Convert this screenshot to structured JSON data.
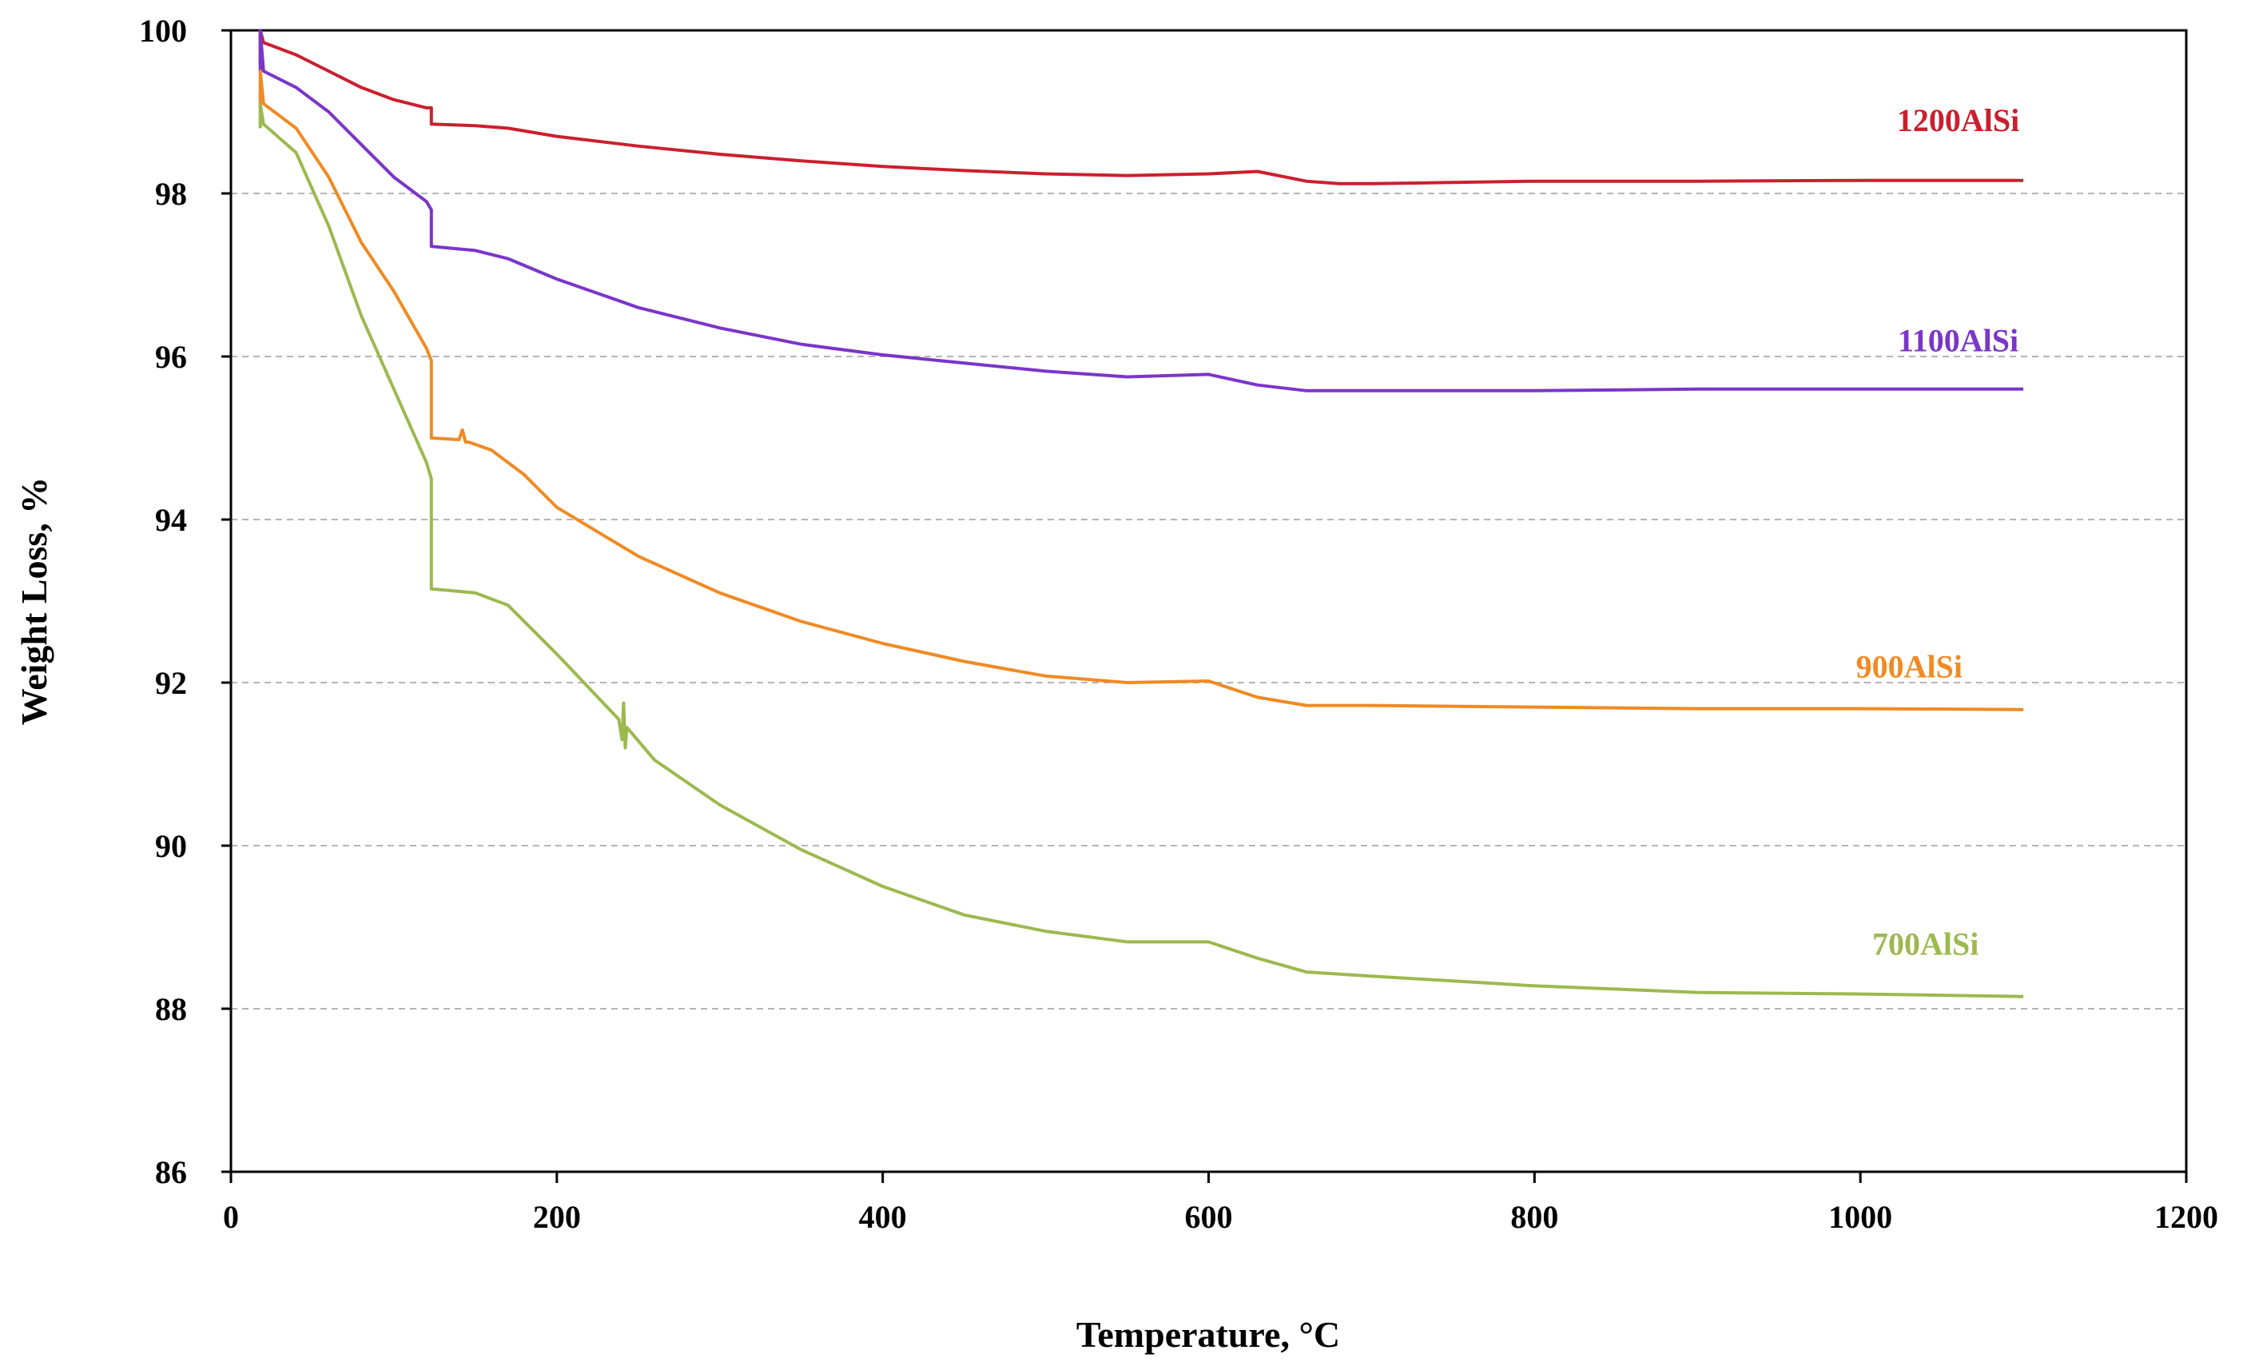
{
  "chart_data": {
    "type": "line",
    "title": "",
    "xlabel": "Temperature, °C",
    "ylabel": "Weight Loss, %",
    "xlim": [
      0,
      1200
    ],
    "ylim": [
      86,
      100
    ],
    "xticks": [
      0,
      200,
      400,
      600,
      800,
      1000,
      1200
    ],
    "yticks": [
      86,
      88,
      90,
      92,
      94,
      96,
      98,
      100
    ],
    "grid": "horizontal dashed",
    "series": [
      {
        "name": "1200AlSi",
        "color": "#cc1f2e",
        "label_at": [
          1060,
          98.9
        ],
        "x": [
          18,
          18,
          20,
          40,
          60,
          80,
          100,
          120,
          123,
          123,
          150,
          170,
          200,
          250,
          300,
          350,
          400,
          450,
          500,
          550,
          600,
          630,
          660,
          680,
          700,
          800,
          900,
          1000,
          1100
        ],
        "y": [
          99.6,
          100.0,
          99.85,
          99.7,
          99.5,
          99.3,
          99.15,
          99.05,
          99.05,
          98.85,
          98.83,
          98.8,
          98.7,
          98.58,
          98.48,
          98.4,
          98.33,
          98.28,
          98.24,
          98.22,
          98.24,
          98.27,
          98.15,
          98.12,
          98.12,
          98.15,
          98.15,
          98.16,
          98.16
        ]
      },
      {
        "name": "1100AlSi",
        "color": "#7b35c9",
        "label_at": [
          1060,
          96.2
        ],
        "x": [
          18,
          18,
          20,
          40,
          60,
          80,
          100,
          120,
          123,
          123,
          150,
          170,
          200,
          250,
          300,
          350,
          400,
          450,
          500,
          550,
          600,
          630,
          660,
          700,
          800,
          900,
          1000,
          1100
        ],
        "y": [
          99.5,
          100.0,
          99.5,
          99.3,
          99.0,
          98.6,
          98.2,
          97.9,
          97.8,
          97.35,
          97.3,
          97.2,
          96.95,
          96.6,
          96.35,
          96.15,
          96.02,
          95.92,
          95.82,
          95.75,
          95.78,
          95.65,
          95.58,
          95.58,
          95.58,
          95.6,
          95.6,
          95.6
        ]
      },
      {
        "name": "900AlSi",
        "color": "#f08a24",
        "label_at": [
          1030,
          92.2
        ],
        "x": [
          18,
          18,
          20,
          40,
          60,
          80,
          100,
          120,
          123,
          123,
          140,
          142,
          144,
          146,
          160,
          180,
          200,
          250,
          300,
          350,
          400,
          450,
          500,
          550,
          600,
          630,
          660,
          700,
          800,
          900,
          1000,
          1100
        ],
        "y": [
          99.0,
          99.5,
          99.1,
          98.8,
          98.2,
          97.4,
          96.8,
          96.1,
          95.95,
          95.0,
          94.98,
          95.1,
          94.95,
          94.95,
          94.85,
          94.55,
          94.15,
          93.55,
          93.1,
          92.75,
          92.48,
          92.26,
          92.08,
          92.0,
          92.02,
          91.82,
          91.72,
          91.72,
          91.7,
          91.68,
          91.68,
          91.67
        ]
      },
      {
        "name": "700AlSi",
        "color": "#9cb94f",
        "label_at": [
          1040,
          88.8
        ],
        "x": [
          18,
          18,
          20,
          40,
          60,
          80,
          100,
          120,
          123,
          123,
          150,
          170,
          200,
          238,
          240,
          241,
          242,
          243,
          260,
          300,
          350,
          400,
          450,
          500,
          550,
          600,
          630,
          660,
          700,
          800,
          900,
          1000,
          1100
        ],
        "y": [
          98.8,
          99.1,
          98.85,
          98.5,
          97.6,
          96.5,
          95.6,
          94.7,
          94.5,
          93.15,
          93.1,
          92.95,
          92.35,
          91.55,
          91.3,
          91.75,
          91.2,
          91.45,
          91.05,
          90.5,
          89.95,
          89.5,
          89.15,
          88.95,
          88.82,
          88.82,
          88.62,
          88.45,
          88.4,
          88.28,
          88.2,
          88.18,
          88.15
        ]
      }
    ]
  }
}
